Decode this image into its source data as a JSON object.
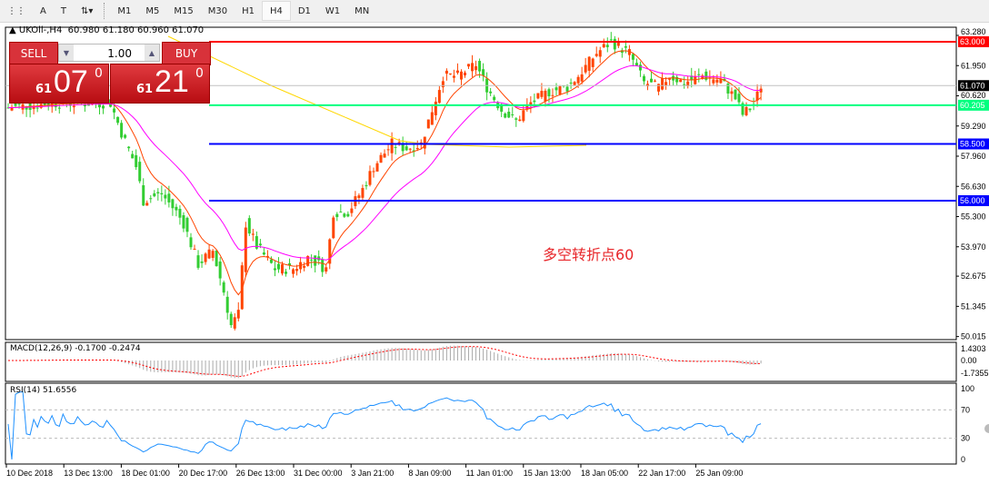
{
  "toolbar": {
    "items": [
      "M1",
      "M5",
      "M15",
      "M30",
      "H1",
      "H4",
      "D1",
      "W1",
      "MN"
    ],
    "selected": "H4"
  },
  "chart_header": {
    "symbol": "UKOil-,H4",
    "ohlc": "60.980 61.180 60.960 61.070"
  },
  "trade_panel": {
    "sell_label": "SELL",
    "buy_label": "BUY",
    "lot": "1.00",
    "sell_small": "61",
    "sell_big": "07",
    "sell_sup": "0",
    "buy_small": "61",
    "buy_big": "21",
    "buy_sup": "0"
  },
  "annotation": "多空转折点60",
  "colors": {
    "bull": "#ff4500",
    "bear": "#32cd32",
    "resistance": "#ff0000",
    "support": "#0000ff",
    "pivot": "#00ff7f",
    "ema_fast": "#ff4500",
    "ma_mid": "#ff00ff",
    "ma_slow": "#ffd700",
    "rsi": "#1e90ff",
    "macd_signal": "#ff0000"
  },
  "chart_data": {
    "type": "candlestick",
    "price_axis_ticks": [
      "63.280",
      "61.950",
      "60.620",
      "59.290",
      "57.960",
      "56.630",
      "55.300",
      "53.970",
      "52.675",
      "51.345",
      "50.015"
    ],
    "ylim": [
      50.015,
      63.28
    ],
    "horizontal_lines": [
      {
        "label": "63.000",
        "value": 63.0,
        "color": "#ff0000"
      },
      {
        "label": "61.070",
        "value": 61.07,
        "color": "#c0c0c0",
        "kind": "current-price"
      },
      {
        "label": "60.205",
        "value": 60.205,
        "color": "#00ff7f"
      },
      {
        "label": "58.500",
        "value": 58.5,
        "color": "#0000ff"
      },
      {
        "label": "56.000",
        "value": 56.0,
        "color": "#0000ff"
      }
    ],
    "time_labels": [
      "10 Dec 2018",
      "13 Dec 13:00",
      "18 Dec 01:00",
      "20 Dec 17:00",
      "26 Dec 13:00",
      "31 Dec 00:00",
      "3 Jan 21:00",
      "8 Jan 09:00",
      "11 Jan 01:00",
      "15 Jan 13:00",
      "18 Jan 05:00",
      "22 Jan 17:00",
      "25 Jan 09:00"
    ],
    "close_path": [
      [
        0,
        60.1
      ],
      [
        13,
        60.3
      ],
      [
        28,
        60.3
      ],
      [
        31,
        59
      ],
      [
        35,
        57.5
      ],
      [
        37,
        56
      ],
      [
        42,
        56.3
      ],
      [
        46,
        55.5
      ],
      [
        48,
        55
      ],
      [
        52,
        53.2
      ],
      [
        56,
        53.8
      ],
      [
        59,
        52
      ],
      [
        61,
        50.5
      ],
      [
        63,
        51
      ],
      [
        65,
        55
      ],
      [
        68,
        54
      ],
      [
        73,
        53
      ],
      [
        78,
        53
      ],
      [
        82,
        53.5
      ],
      [
        87,
        53
      ],
      [
        89,
        55.5
      ],
      [
        93,
        55.5
      ],
      [
        97,
        56.5
      ],
      [
        100,
        57.5
      ],
      [
        105,
        58.5
      ],
      [
        109,
        58.3
      ],
      [
        113,
        58.5
      ],
      [
        115,
        59.5
      ],
      [
        119,
        61.5
      ],
      [
        123,
        61.5
      ],
      [
        128,
        62
      ],
      [
        131,
        61
      ],
      [
        135,
        60
      ],
      [
        139,
        59.5
      ],
      [
        143,
        60.3
      ],
      [
        148,
        60.8
      ],
      [
        153,
        61
      ],
      [
        156,
        61.5
      ],
      [
        161,
        62.5
      ],
      [
        165,
        63
      ],
      [
        170,
        62.5
      ],
      [
        174,
        61.2
      ],
      [
        178,
        61
      ],
      [
        181,
        61.5
      ],
      [
        185,
        61.2
      ],
      [
        190,
        61.5
      ],
      [
        195,
        61.3
      ],
      [
        199,
        60.5
      ],
      [
        201,
        59.8
      ],
      [
        204,
        60.2
      ],
      [
        206,
        61.07
      ]
    ],
    "macd": {
      "label": "MACD(12,26,9) -0.1700 -0.2474",
      "ticks": [
        "1.4303",
        "0.00",
        "-1.7355"
      ]
    },
    "rsi": {
      "label": "RSI(14) 51.6556",
      "ticks": [
        "100",
        "70",
        "30",
        "0"
      ],
      "levels": [
        70,
        30
      ]
    }
  }
}
